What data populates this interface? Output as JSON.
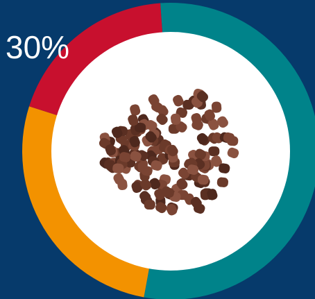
{
  "chart_data": {
    "type": "donut",
    "annotation": "30%",
    "values": [
      54,
      27,
      19
    ],
    "colors": [
      "#00838a",
      "#f39200",
      "#c8102e"
    ]
  }
}
